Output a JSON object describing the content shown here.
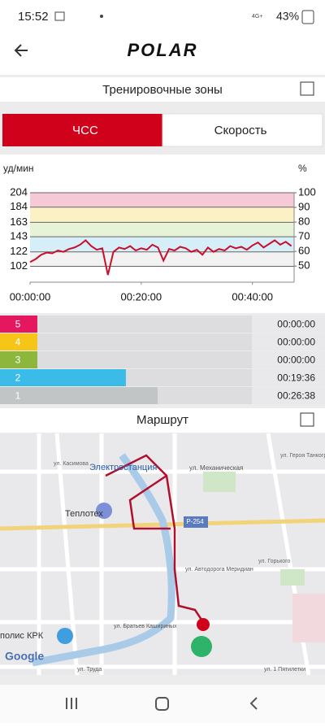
{
  "status_bar": {
    "time": "15:52",
    "network": "4G+",
    "battery": "43%"
  },
  "header": {
    "logo": "POLAR"
  },
  "zones_section": {
    "title": "Тренировочные зоны",
    "tabs": [
      "ЧСС",
      "Скорость"
    ]
  },
  "route_section": {
    "title": "Маршрут"
  },
  "map": {
    "labels": [
      "Электростанция",
      "Теплотех",
      "ул. Механическая",
      "Р-254",
      "полис КРК",
      "ул. Касимова",
      "ул. Братьев Кашириных",
      "ул. Труда",
      "ул. Горького",
      "ул. Героя Танкограда",
      "ул. Автодорога Меридиан",
      "ул. 1 Пятилетки"
    ],
    "attribution": "Google"
  },
  "chart_data": [
    {
      "type": "line",
      "y_label": "уд/мин",
      "y2_label": "%",
      "x": [
        0,
        1,
        2,
        3,
        4,
        5,
        6,
        7,
        8,
        9,
        10,
        11,
        12,
        13,
        14,
        15,
        16,
        17,
        18,
        19,
        20,
        21,
        22,
        23,
        24,
        25,
        26,
        27,
        28,
        29,
        30,
        31,
        32,
        33,
        34,
        35,
        36,
        37,
        38,
        39,
        40,
        41,
        42,
        43,
        44,
        45,
        46,
        47
      ],
      "series": [
        {
          "color": "#c8102e",
          "values": [
            108,
            112,
            118,
            121,
            120,
            124,
            122,
            126,
            128,
            132,
            138,
            130,
            125,
            127,
            90,
            122,
            128,
            126,
            130,
            124,
            127,
            125,
            132,
            128,
            110,
            126,
            124,
            129,
            127,
            122,
            125,
            118,
            128,
            122,
            126,
            124,
            130,
            127,
            129,
            125,
            131,
            135,
            128,
            133,
            138,
            132,
            136,
            130
          ]
        }
      ],
      "xlim": [
        0,
        47.5
      ],
      "ylim": [
        80,
        204
      ],
      "y2lim": [
        39,
        100
      ],
      "xticks": [
        {
          "value": 0,
          "label": "00:00:00"
        },
        {
          "value": 20,
          "label": "00:20:00"
        },
        {
          "value": 40,
          "label": "00:40:00"
        }
      ],
      "yticks": [
        102,
        122,
        143,
        163,
        184,
        204
      ],
      "y2ticks": [
        50,
        60,
        70,
        80,
        90,
        100
      ],
      "band_colors": [
        "#f2f2f2",
        "#d5eef7",
        "#e6f3d6",
        "#fbf1c4",
        "#f6c9d6"
      ]
    },
    {
      "type": "hbar",
      "categories": [
        "5",
        "4",
        "3",
        "2",
        "1"
      ],
      "values": [
        0,
        0,
        0,
        1176,
        1598
      ],
      "value_labels": [
        "00:00:00",
        "00:00:00",
        "00:00:00",
        "00:19:36",
        "00:26:38"
      ],
      "colors": [
        "#e5175f",
        "#f5c518",
        "#8db63c",
        "#3bbbe8",
        "#c2c5c6"
      ],
      "xlim": [
        0,
        2850
      ]
    }
  ]
}
